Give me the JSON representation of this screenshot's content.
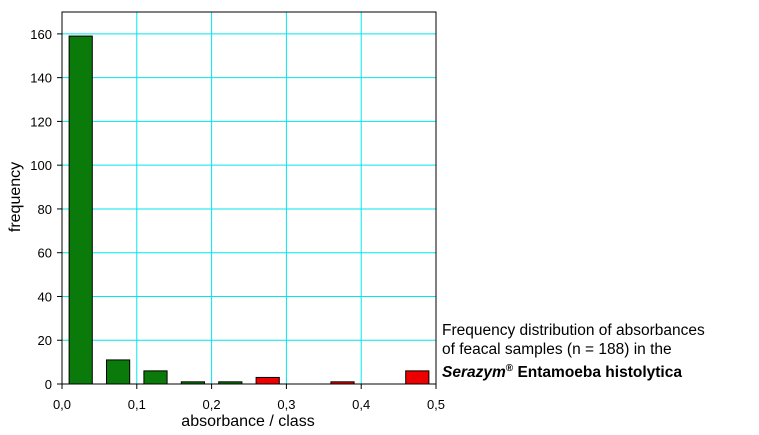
{
  "chart_data": {
    "type": "bar",
    "xlabel": "absorbance / class",
    "ylabel": "frequency",
    "xlim": [
      0,
      0.5
    ],
    "ylim": [
      0,
      170
    ],
    "x_ticks": [
      "0,0",
      "0,1",
      "0,2",
      "0,3",
      "0,4",
      "0,5"
    ],
    "y_ticks": [
      "0",
      "20",
      "40",
      "60",
      "80",
      "100",
      "120",
      "140",
      "160"
    ],
    "grid": true,
    "grid_color": "#00e5ee",
    "bars": [
      {
        "x": 0.025,
        "value": 159,
        "color": "#0a7a0a"
      },
      {
        "x": 0.075,
        "value": 11,
        "color": "#0a7a0a"
      },
      {
        "x": 0.125,
        "value": 6,
        "color": "#0a7a0a"
      },
      {
        "x": 0.175,
        "value": 1,
        "color": "#0a7a0a"
      },
      {
        "x": 0.225,
        "value": 1,
        "color": "#0a7a0a"
      },
      {
        "x": 0.275,
        "value": 3,
        "color": "#ee0000"
      },
      {
        "x": 0.375,
        "value": 1,
        "color": "#ee0000"
      },
      {
        "x": 0.475,
        "value": 6,
        "color": "#ee0000"
      }
    ]
  },
  "caption": {
    "line1": "Frequency distribution of absorbances",
    "line2": "of feacal samples (n = 188) in the",
    "brand": "Serazym",
    "registered": "®",
    "product": " Entamoeba histolytica"
  }
}
